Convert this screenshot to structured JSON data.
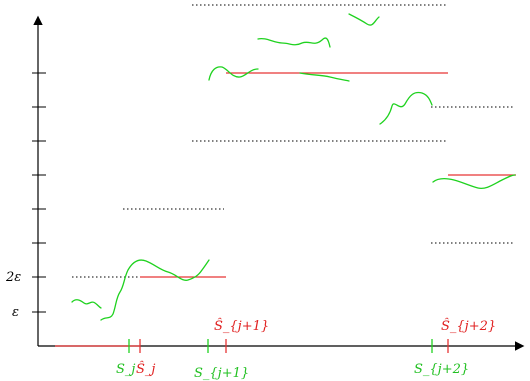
{
  "colors": {
    "axis": "#000000",
    "dotted": "#000000",
    "curve": "#1fd21f",
    "level_line": "#e63434",
    "green_label": "#22c022",
    "red_label": "#e02020"
  },
  "y_axis": {
    "labels": [
      "ε",
      "2ε"
    ]
  },
  "x_axis": {
    "green_labels": [
      "S_j",
      "S_{j+1}",
      "S_{j+2}"
    ],
    "red_labels": [
      "Ŝ_j",
      "Ŝ_{j+1}",
      "Ŝ_{j+2}"
    ]
  }
}
